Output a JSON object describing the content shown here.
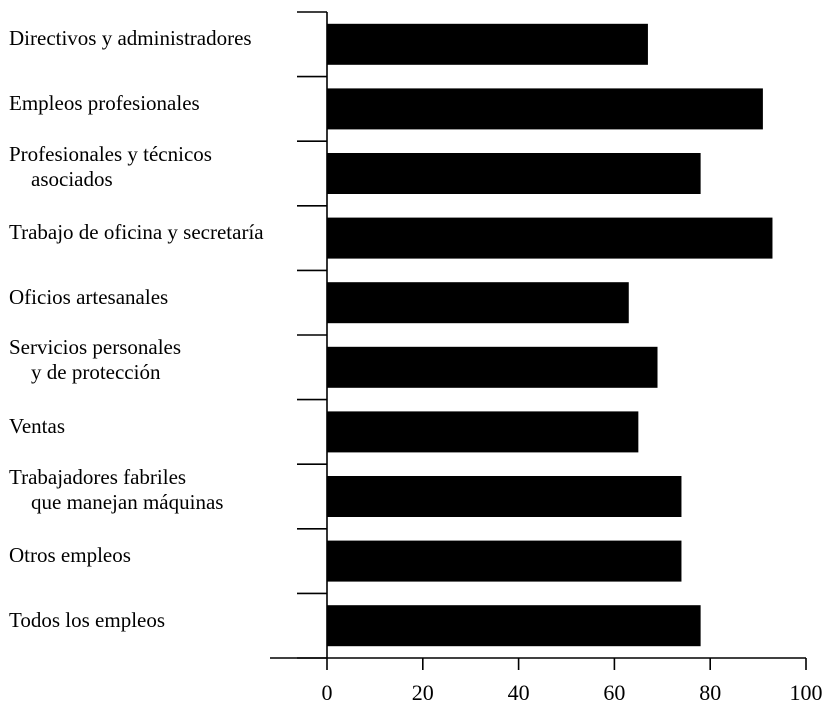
{
  "chart_data": {
    "type": "bar",
    "orientation": "horizontal",
    "categories": [
      [
        "Directivos y administradores"
      ],
      [
        "Empleos profesionales"
      ],
      [
        "Profesionales y técnicos",
        "asociados"
      ],
      [
        "Trabajo de oficina y secretaría"
      ],
      [
        "Oficios artesanales"
      ],
      [
        "Servicios personales",
        "y de protección"
      ],
      [
        "Ventas"
      ],
      [
        "Trabajadores fabriles",
        "que manejan máquinas"
      ],
      [
        "Otros empleos"
      ],
      [
        "Todos los empleos"
      ]
    ],
    "values": [
      67,
      91,
      78,
      93,
      63,
      69,
      65,
      74,
      74,
      78
    ],
    "xlim": [
      0,
      100
    ],
    "xticks": [
      "0",
      "20",
      "40",
      "60",
      "80",
      "100"
    ],
    "xlabel": "",
    "ylabel": "",
    "title": "",
    "grid": false,
    "legend": "none",
    "bar_color": "#000000"
  }
}
